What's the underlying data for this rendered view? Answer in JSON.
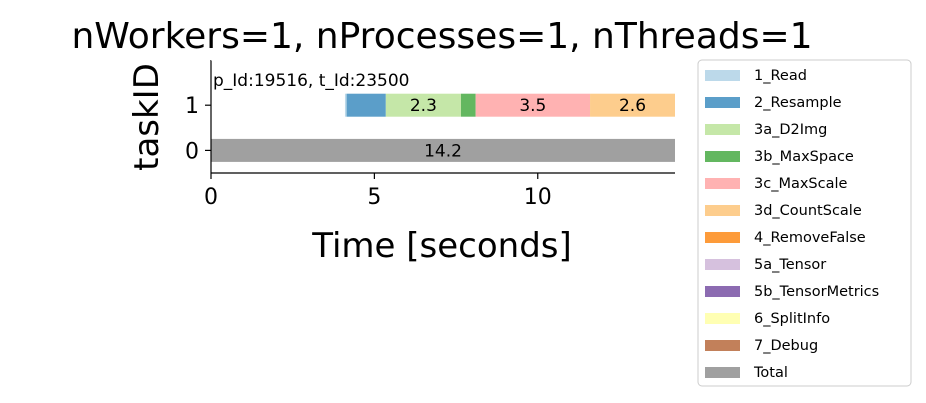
{
  "chart_data": {
    "type": "bar",
    "orientation": "horizontal-stacked",
    "title": "nWorkers=1, nProcesses=1, nThreads=1",
    "xlabel": "Time [seconds]",
    "ylabel": "taskID",
    "xlim": [
      0,
      14.2
    ],
    "ylim": [
      -0.5,
      2.0
    ],
    "xticks": [
      "0",
      "5",
      "10"
    ],
    "xtick_values": [
      0,
      5,
      10
    ],
    "yticks": [
      "0",
      "1"
    ],
    "ytick_values": [
      0,
      1
    ],
    "grid": false,
    "legend_position": "right",
    "annotation": "p_Id:19516, t_Id:23500",
    "tasks": [
      {
        "task": 1,
        "segments": [
          {
            "series": "1_Read",
            "start": 4.1,
            "value": 0.05,
            "label": ""
          },
          {
            "series": "2_Resample",
            "start": 4.15,
            "value": 1.2,
            "label": ""
          },
          {
            "series": "3a_D2Img",
            "start": 5.35,
            "value": 2.3,
            "label": "2.3"
          },
          {
            "series": "3b_MaxSpace",
            "start": 7.65,
            "value": 0.45,
            "label": ""
          },
          {
            "series": "3c_MaxScale",
            "start": 8.1,
            "value": 3.5,
            "label": "3.5"
          },
          {
            "series": "3d_CountScale",
            "start": 11.6,
            "value": 2.6,
            "label": "2.6"
          }
        ]
      },
      {
        "task": 0,
        "segments": [
          {
            "series": "Total",
            "start": 0,
            "value": 14.2,
            "label": "14.2"
          }
        ]
      }
    ],
    "legend": [
      {
        "name": "1_Read",
        "color": "#bcd9ea"
      },
      {
        "name": "2_Resample",
        "color": "#5b9ec9"
      },
      {
        "name": "3a_D2Img",
        "color": "#c5e7a8"
      },
      {
        "name": "3b_MaxSpace",
        "color": "#63b760"
      },
      {
        "name": "3c_MaxScale",
        "color": "#ffb2b2"
      },
      {
        "name": "3d_CountScale",
        "color": "#fdcd8d"
      },
      {
        "name": "4_RemoveFalse",
        "color": "#fd9b3a"
      },
      {
        "name": "5a_Tensor",
        "color": "#d6c1de"
      },
      {
        "name": "5b_TensorMetrics",
        "color": "#8c6bb1"
      },
      {
        "name": "6_SplitInfo",
        "color": "#ffffb3"
      },
      {
        "name": "7_Debug",
        "color": "#c2805a"
      },
      {
        "name": "Total",
        "color": "#a0a0a0"
      }
    ]
  }
}
